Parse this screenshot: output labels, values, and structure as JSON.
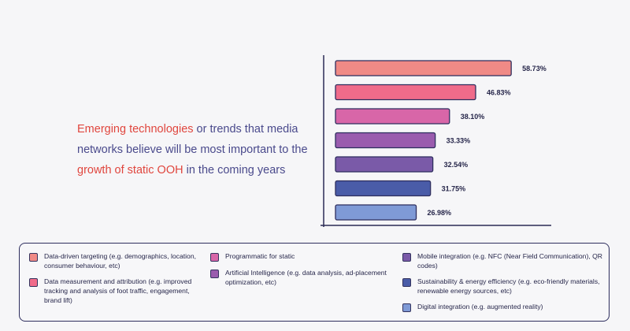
{
  "headline": {
    "segments": [
      {
        "text": "Emerging technologies",
        "color": "#e0463e"
      },
      {
        "text": " or trends that media networks believe will be most important to the ",
        "color": "#4a4a8c"
      },
      {
        "text": "growth of static OOH",
        "color": "#e0463e"
      },
      {
        "text": " in the coming years",
        "color": "#4a4a8c"
      }
    ]
  },
  "chart_data": {
    "type": "bar",
    "orientation": "horizontal",
    "title": "Emerging technologies or trends that media networks believe will be most important to the growth of static OOH in the coming years",
    "categories": [
      "Data-driven targeting (e.g. demographics, location, consumer behaviour, etc)",
      "Data measurement and attribution (e.g. improved tracking and analysis of foot traffic, engagement, brand lift)",
      "Programmatic for static",
      "Artificial Intelligence (e.g. data analysis, ad-placement optimization, etc)",
      "Mobile integration (e.g. NFC (Near Field Communication), QR codes)",
      "Sustainability & energy efficiency (e.g. eco-friendly materials, renewable energy sources, etc)",
      "Digital integration (e.g. augmented reality)"
    ],
    "values": [
      58.73,
      46.83,
      38.1,
      33.33,
      32.54,
      31.75,
      26.98
    ],
    "value_labels": [
      "58.73%",
      "46.83%",
      "38.10%",
      "33.33%",
      "32.54%",
      "31.75%",
      "26.98%"
    ],
    "colors": [
      "#f08a86",
      "#f06b8a",
      "#d866a8",
      "#9a5cae",
      "#7a5aa8",
      "#4a5ca8",
      "#7f9ad6"
    ],
    "xlim": [
      0,
      60
    ],
    "xlabel": "",
    "ylabel": ""
  },
  "legend": {
    "columns": [
      [
        {
          "label": "Data-driven targeting (e.g. demographics, location, consumer behaviour, etc)",
          "color": "#f08a86"
        },
        {
          "label": "Data measurement and attribution (e.g. improved tracking and analysis of foot traffic, engagement, brand lift)",
          "color": "#f06b8a"
        }
      ],
      [
        {
          "label": "Programmatic for static",
          "color": "#d866a8"
        },
        {
          "label": "Artificial Intelligence (e.g. data analysis, ad-placement optimization, etc)",
          "color": "#9a5cae"
        }
      ],
      [
        {
          "label": "Mobile integration (e.g. NFC (Near Field Communication), QR codes)",
          "color": "#7a5aa8"
        },
        {
          "label": "Sustainability & energy efficiency (e.g. eco-friendly materials, renewable energy sources, etc)",
          "color": "#4a5ca8"
        },
        {
          "label": "Digital integration (e.g. augmented reality)",
          "color": "#7f9ad6"
        }
      ]
    ]
  }
}
